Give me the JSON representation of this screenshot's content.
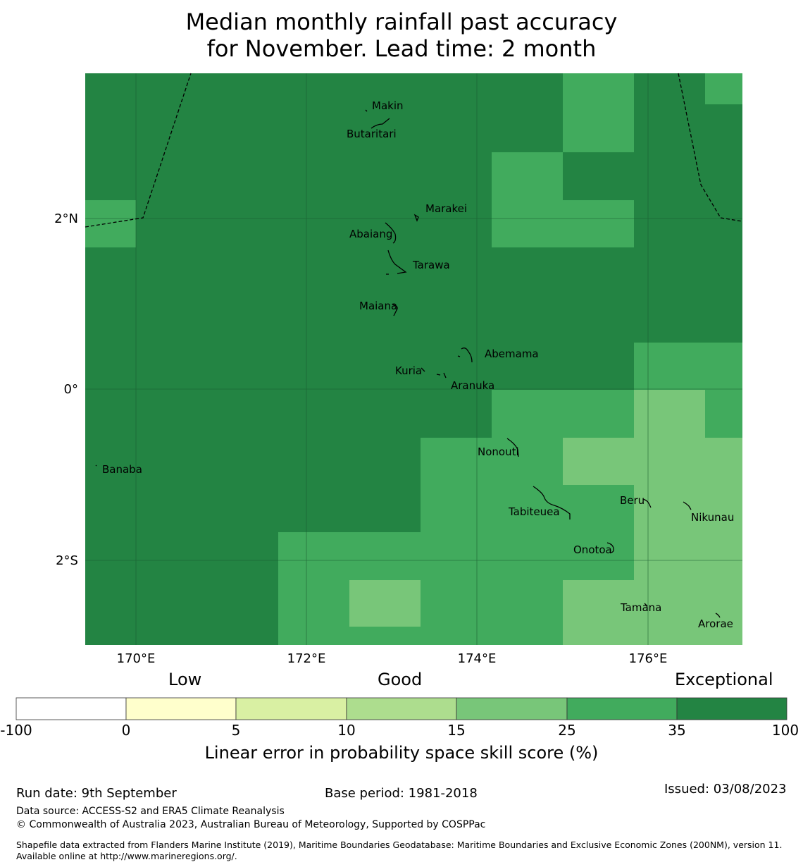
{
  "title": {
    "line1": "Median monthly rainfall past accuracy",
    "line2": "for November. Lead time: 2 month"
  },
  "map": {
    "lon_ticks": [
      "170°E",
      "172°E",
      "174°E",
      "176°E"
    ],
    "lat_ticks": [
      "2°N",
      "0°",
      "2°S"
    ],
    "places": [
      "Makin",
      "Butaritari",
      "Marakei",
      "Abaiang",
      "Tarawa",
      "Maiana",
      "Abemama",
      "Kuria",
      "Aranuka",
      "Nonouti",
      "Banaba",
      "Beru",
      "Tabiteuea",
      "Nikunau",
      "Onotoa",
      "Tamana",
      "Arorae"
    ],
    "skill_classes_shown": [
      "25–35",
      "35–100",
      "15–25"
    ]
  },
  "colorbar": {
    "category_labels": [
      "Low",
      "Good",
      "Exceptional"
    ],
    "ticks": [
      "-100",
      "0",
      "5",
      "10",
      "15",
      "25",
      "35",
      "100"
    ],
    "colors": [
      "#ffffff",
      "#ffffcc",
      "#d9f0a3",
      "#addd8e",
      "#78c679",
      "#41ab5d",
      "#238443"
    ],
    "label": "Linear error in probability space skill score (%)"
  },
  "footer": {
    "run_date": "Run date: 9th September",
    "base_period": "Base period: 1981-2018",
    "issued": "Issued: 03/08/2023",
    "data_source": "Data source: ACCESS-S2 and ERA5 Climate Reanalysis",
    "copyright": "© Commonwealth of Australia 2023, Australian Bureau of Meteorology, Supported by COSPPac",
    "shapefile": "Shapefile data extracted from Flanders Marine Institute (2019), Maritime Boundaries Geodatabase: Maritime Boundaries and Exclusive Economic Zones (200NM), version 11. Available online at http://www.marineregions.org/."
  }
}
